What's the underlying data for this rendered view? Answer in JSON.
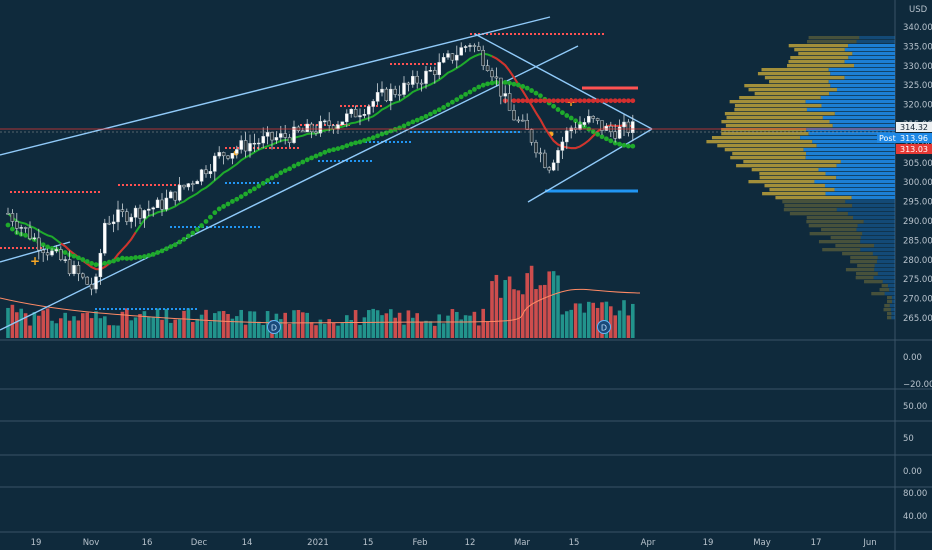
{
  "currency": "USD",
  "price_axis_labels": [
    "340.00",
    "335.00",
    "330.00",
    "325.00",
    "320.00",
    "315.00",
    "310.00",
    "305.00",
    "300.00",
    "295.00",
    "290.00",
    "285.00",
    "280.00",
    "275.00",
    "270.00",
    "265.00"
  ],
  "price_badges": {
    "last": {
      "value": "314.32",
      "color": "#ffffff"
    },
    "post_label": "Post",
    "post": {
      "value": "313.96",
      "color": "#1e88e5"
    },
    "red": {
      "value": "313.03",
      "color": "#e53935"
    }
  },
  "pane_labels": {
    "pane2": [
      "0.00",
      "−20.00"
    ],
    "pane3": [
      "50.00",
      "50",
      "0.00"
    ],
    "pane4": [
      "80.00",
      "40.00"
    ]
  },
  "time_axis_labels": [
    "19",
    "Nov",
    "16",
    "Dec",
    "14",
    "2021",
    "15",
    "Feb",
    "12",
    "Mar",
    "15",
    "Apr",
    "19",
    "May",
    "17",
    "Jun"
  ],
  "dividend_markers": [
    "D",
    "D"
  ],
  "colors": {
    "background": "#0f2a3c",
    "candle_up": "#ffffff",
    "volume_up": "#26a69a",
    "volume_down": "#ef5350",
    "ma_green": "#1faa2c",
    "ma_red": "#d32f2f",
    "trendline": "#90caf9",
    "support_dots": "#2196f3",
    "resistance_dots": "#ff5252",
    "volume_profile_gold": "#b29a3a",
    "volume_profile_blue": "#1e88e5"
  }
}
